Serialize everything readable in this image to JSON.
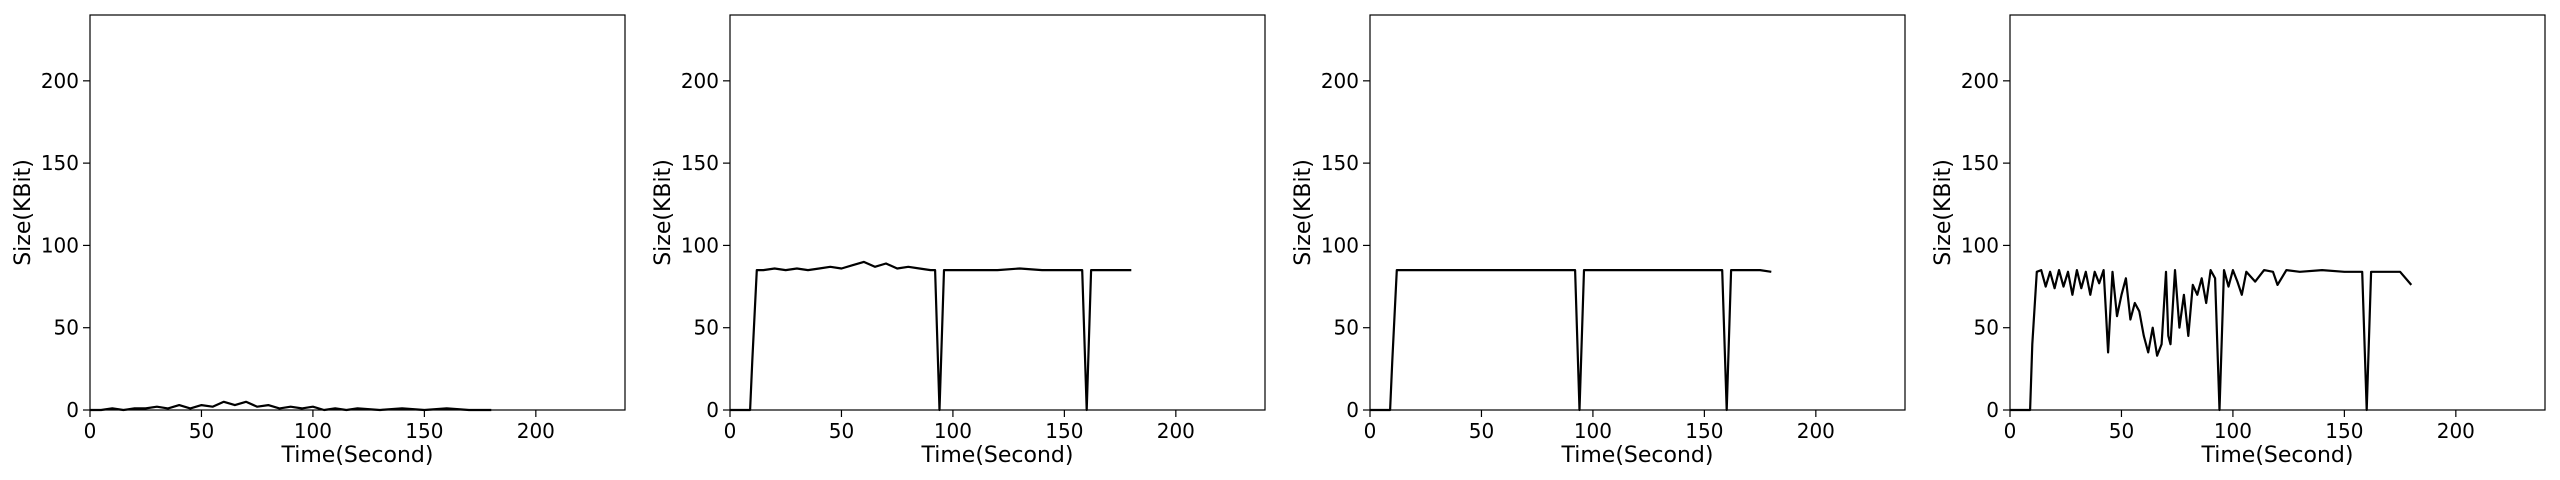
{
  "chart_data": [
    {
      "type": "line",
      "xlabel": "Time(Second)",
      "ylabel": "Size(KBit)",
      "xlim": [
        0,
        240
      ],
      "ylim": [
        0,
        240
      ],
      "xticks": [
        0,
        50,
        100,
        150,
        200
      ],
      "yticks": [
        0,
        50,
        100,
        150,
        200
      ],
      "grid": false,
      "series": [
        {
          "color": "#000000",
          "x": [
            0,
            5,
            10,
            15,
            20,
            25,
            30,
            35,
            40,
            45,
            50,
            55,
            60,
            65,
            70,
            75,
            80,
            85,
            90,
            95,
            100,
            105,
            110,
            115,
            120,
            130,
            140,
            150,
            160,
            170,
            180
          ],
          "y": [
            0,
            0,
            1,
            0,
            1,
            1,
            2,
            1,
            3,
            1,
            3,
            2,
            5,
            3,
            5,
            2,
            3,
            1,
            2,
            1,
            2,
            0,
            1,
            0,
            1,
            0,
            1,
            0,
            1,
            0,
            0
          ]
        }
      ]
    },
    {
      "type": "line",
      "xlabel": "Time(Second)",
      "ylabel": "Size(KBit)",
      "xlim": [
        0,
        240
      ],
      "ylim": [
        0,
        240
      ],
      "xticks": [
        0,
        50,
        100,
        150,
        200
      ],
      "yticks": [
        0,
        50,
        100,
        150,
        200
      ],
      "grid": false,
      "series": [
        {
          "color": "#000000",
          "x": [
            0,
            5,
            9,
            10,
            12,
            15,
            20,
            25,
            30,
            35,
            40,
            45,
            50,
            55,
            60,
            65,
            70,
            75,
            80,
            85,
            90,
            92,
            94,
            96,
            98,
            100,
            110,
            120,
            130,
            140,
            150,
            155,
            158,
            160,
            162,
            165,
            170,
            175,
            180
          ],
          "y": [
            0,
            0,
            0,
            30,
            85,
            85,
            86,
            85,
            86,
            85,
            86,
            87,
            86,
            88,
            90,
            87,
            89,
            86,
            87,
            86,
            85,
            85,
            0,
            85,
            85,
            85,
            85,
            85,
            86,
            85,
            85,
            85,
            85,
            0,
            85,
            85,
            85,
            85,
            85
          ]
        }
      ]
    },
    {
      "type": "line",
      "xlabel": "Time(Second)",
      "ylabel": "Size(KBit)",
      "xlim": [
        0,
        240
      ],
      "ylim": [
        0,
        240
      ],
      "xticks": [
        0,
        50,
        100,
        150,
        200
      ],
      "yticks": [
        0,
        50,
        100,
        150,
        200
      ],
      "grid": false,
      "series": [
        {
          "color": "#000000",
          "x": [
            0,
            5,
            9,
            10,
            12,
            15,
            20,
            30,
            40,
            50,
            60,
            70,
            80,
            90,
            92,
            94,
            96,
            98,
            100,
            110,
            120,
            130,
            140,
            150,
            155,
            158,
            160,
            162,
            165,
            170,
            175,
            180
          ],
          "y": [
            0,
            0,
            0,
            30,
            85,
            85,
            85,
            85,
            85,
            85,
            85,
            85,
            85,
            85,
            85,
            0,
            85,
            85,
            85,
            85,
            85,
            85,
            85,
            85,
            85,
            85,
            0,
            85,
            85,
            85,
            85,
            84
          ]
        }
      ]
    },
    {
      "type": "line",
      "xlabel": "Time(Second)",
      "ylabel": "Size(KBit)",
      "xlim": [
        0,
        240
      ],
      "ylim": [
        0,
        240
      ],
      "xticks": [
        0,
        50,
        100,
        150,
        200
      ],
      "yticks": [
        0,
        50,
        100,
        150,
        200
      ],
      "grid": false,
      "series": [
        {
          "color": "#000000",
          "x": [
            0,
            5,
            9,
            10,
            12,
            14,
            16,
            18,
            20,
            22,
            24,
            26,
            28,
            30,
            32,
            34,
            36,
            38,
            40,
            42,
            43,
            44,
            46,
            48,
            50,
            52,
            54,
            56,
            58,
            60,
            62,
            64,
            66,
            68,
            70,
            71,
            72,
            74,
            76,
            78,
            80,
            82,
            84,
            86,
            88,
            90,
            92,
            94,
            96,
            98,
            100,
            102,
            104,
            106,
            110,
            114,
            118,
            120,
            124,
            130,
            140,
            150,
            155,
            158,
            160,
            162,
            165,
            170,
            175,
            180
          ],
          "y": [
            0,
            0,
            0,
            40,
            84,
            85,
            75,
            84,
            74,
            85,
            75,
            84,
            70,
            85,
            74,
            84,
            70,
            84,
            77,
            85,
            60,
            35,
            84,
            57,
            70,
            80,
            55,
            65,
            60,
            45,
            35,
            50,
            33,
            40,
            84,
            45,
            40,
            85,
            50,
            70,
            45,
            76,
            70,
            80,
            65,
            85,
            80,
            0,
            85,
            75,
            85,
            78,
            70,
            84,
            78,
            85,
            84,
            76,
            85,
            84,
            85,
            84,
            84,
            84,
            0,
            84,
            84,
            84,
            84,
            76
          ]
        }
      ]
    }
  ]
}
